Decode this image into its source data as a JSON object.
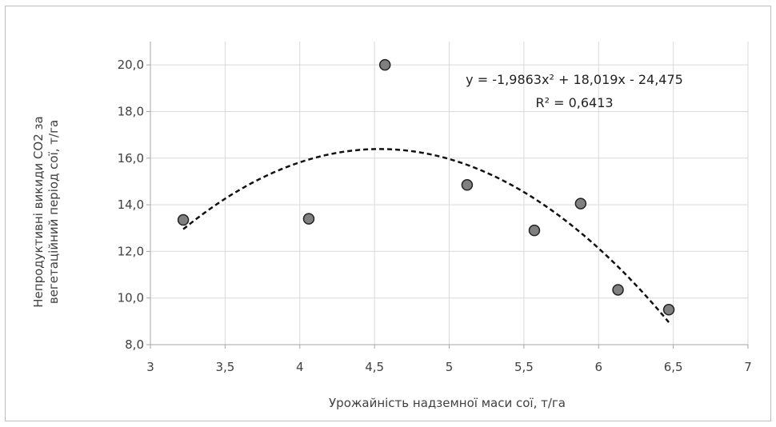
{
  "chart_data": {
    "type": "scatter",
    "title": "",
    "xlabel": "Урожайність надземної маси сої, т/га",
    "ylabel": [
      "Непродуктивні викиди СО2 за",
      "вегетаційний період сої, т/га"
    ],
    "xlim": [
      3,
      7
    ],
    "ylim": [
      8,
      21
    ],
    "x_ticks": [
      3,
      3.5,
      4,
      4.5,
      5,
      5.5,
      6,
      6.5,
      7
    ],
    "x_tick_labels": [
      "3",
      "3,5",
      "4",
      "4,5",
      "5",
      "5,5",
      "6",
      "6,5",
      "7"
    ],
    "y_ticks": [
      8,
      10,
      12,
      14,
      16,
      18,
      20
    ],
    "y_tick_labels": [
      "8,0",
      "10,0",
      "12,0",
      "14,0",
      "16,0",
      "18,0",
      "20,0"
    ],
    "grid": "vertical and horizontal",
    "series": [
      {
        "points": [
          {
            "x": 3.22,
            "y": 13.35
          },
          {
            "x": 4.06,
            "y": 13.4
          },
          {
            "x": 4.57,
            "y": 20.0
          },
          {
            "x": 5.12,
            "y": 14.85
          },
          {
            "x": 5.57,
            "y": 12.9
          },
          {
            "x": 5.88,
            "y": 14.05
          },
          {
            "x": 6.13,
            "y": 10.35
          },
          {
            "x": 6.47,
            "y": 9.5
          }
        ],
        "marker_color": "#808080",
        "marker_edge": "#222222"
      }
    ],
    "trendline": {
      "type": "polynomial",
      "coefficients": [
        -1.9863,
        18.019,
        -24.475
      ],
      "x_range": [
        3.22,
        6.47
      ],
      "style": "dashed",
      "color": "#111111",
      "equation": "y = -1,9863x² + 18,019x - 24,475",
      "r_squared": "R² = 0,6413"
    }
  }
}
